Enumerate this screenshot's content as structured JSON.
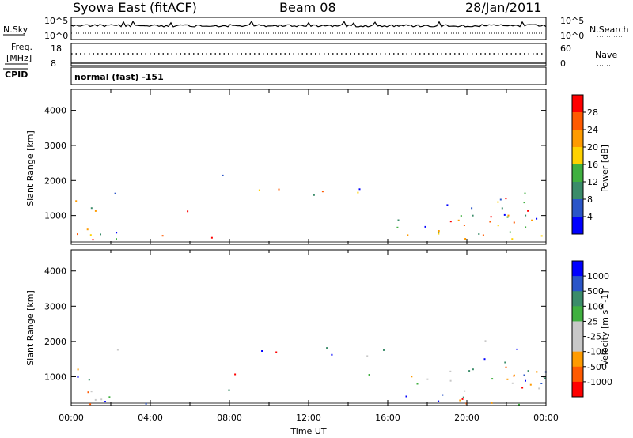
{
  "header": {
    "station": "Syowa East (fitACF)",
    "beam": "Beam 08",
    "date": "28/Jan/2011"
  },
  "strips": {
    "nsky_label": "N.Sky",
    "nsearch_label": "N.Search",
    "noise_ticks": [
      "10^5",
      "10^0"
    ],
    "freq_label_1": "Freq.",
    "freq_label_2": "[MHz]",
    "freq_ticks": [
      "18",
      "8"
    ],
    "nave_label": "Nave",
    "nave_ticks": [
      "60",
      "0"
    ],
    "cpid_label": "CPID",
    "cpid_value": "normal (fast) -151"
  },
  "colors": {
    "power_scale": [
      "#0000ff",
      "#2a55c8",
      "#3b8c6a",
      "#40b040",
      "#ffd200",
      "#ff9b00",
      "#ff5a00",
      "#ff0000"
    ],
    "velocity_scale": [
      "#ff0000",
      "#ff5a00",
      "#ff9b00",
      "#c8c8c8",
      "#c8c8c8",
      "#40b040",
      "#3b8c6a",
      "#2a55c8",
      "#0000ff"
    ]
  },
  "chart_data": [
    {
      "type": "heatmap",
      "name": "power",
      "ylabel": "Slant Range [km]",
      "x_range_hours": [
        0,
        24
      ],
      "ylim": [
        180,
        4600
      ],
      "y_ticks": [
        "4000",
        "3000",
        "2000",
        "1000"
      ],
      "x_ticks": [
        "00:00",
        "04:00",
        "08:00",
        "12:00",
        "16:00",
        "20:00",
        "00:00"
      ],
      "colorbar": {
        "label": "Power [dB]",
        "ticks": [
          "28",
          "24",
          "20",
          "16",
          "12",
          "8",
          "4"
        ]
      }
    },
    {
      "type": "heatmap",
      "name": "velocity",
      "ylabel": "Slant Range [km]",
      "xlabel": "Time UT",
      "x_range_hours": [
        0,
        24
      ],
      "ylim": [
        180,
        4600
      ],
      "y_ticks": [
        "4000",
        "3000",
        "2000",
        "1000"
      ],
      "x_ticks": [
        "00:00",
        "04:00",
        "08:00",
        "12:00",
        "16:00",
        "20:00",
        "00:00"
      ],
      "colorbar": {
        "label": "Velocity [m s^-1]",
        "ticks": [
          "1000",
          "500",
          "100",
          "25",
          "-25",
          "-100",
          "-500",
          "-1000"
        ]
      }
    }
  ]
}
